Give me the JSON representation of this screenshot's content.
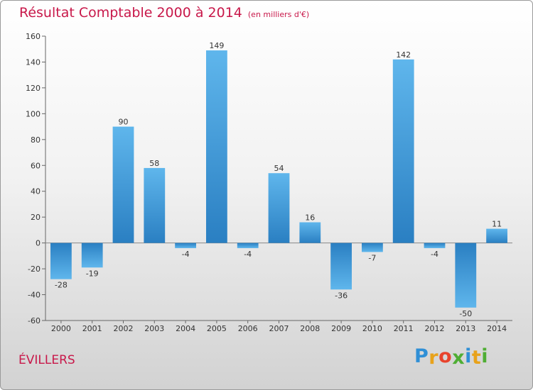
{
  "chart_data": {
    "type": "bar",
    "title": "Résultat Comptable 2000 à 2014",
    "subtitle": "(en milliers d'€)",
    "categories": [
      "2000",
      "2001",
      "2002",
      "2003",
      "2004",
      "2005",
      "2006",
      "2007",
      "2008",
      "2009",
      "2010",
      "2011",
      "2012",
      "2013",
      "2014"
    ],
    "values": [
      -28,
      -19,
      90,
      58,
      -4,
      149,
      -4,
      54,
      16,
      -36,
      -7,
      142,
      -4,
      -50,
      11
    ],
    "ylim": [
      -60,
      160
    ],
    "yticks": [
      -60,
      -40,
      -20,
      0,
      20,
      40,
      60,
      80,
      100,
      120,
      140,
      160
    ],
    "grid": false,
    "bar_color": "#3d9ee0"
  },
  "footer": {
    "commune": "ÉVILLERS"
  },
  "logo": {
    "letters": [
      "P",
      "r",
      "o",
      "x",
      "i",
      "t",
      "i"
    ],
    "colors": [
      "#2f8fd6",
      "#e8a21a",
      "#e8432c",
      "#4fae34",
      "#2f8fd6",
      "#e8a21a",
      "#4fae34"
    ]
  }
}
